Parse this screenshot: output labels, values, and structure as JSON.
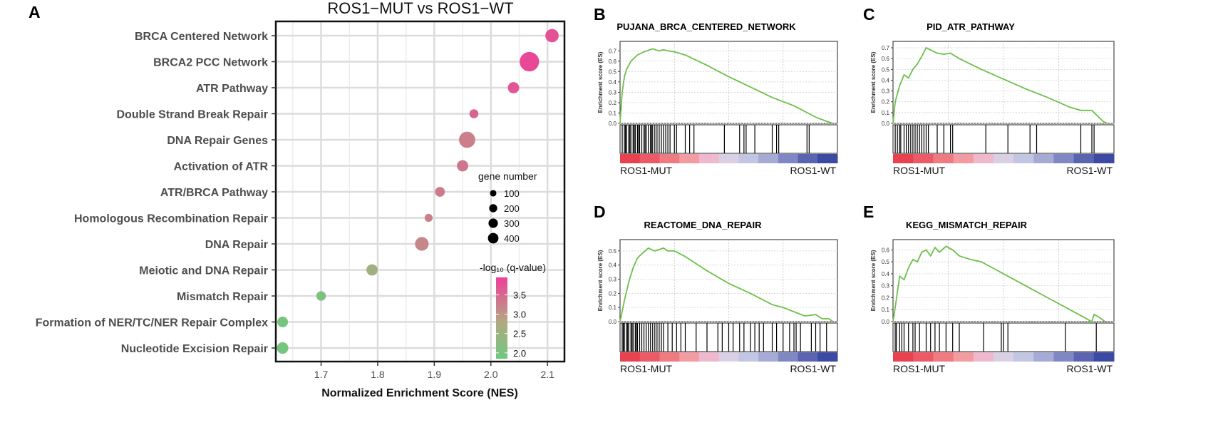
{
  "panels": {
    "a": "A",
    "b": "B",
    "c": "C",
    "d": "D",
    "e": "E"
  },
  "chart_data": [
    {
      "type": "scatter",
      "id": "dotplot",
      "title": "ROS1−MUT vs ROS1−WT",
      "xlabel": "Normalized Enrichment Score (NES)",
      "ylabel": "",
      "xlim": [
        1.62,
        2.13
      ],
      "xticks": [
        1.7,
        1.8,
        1.9,
        2.0,
        2.1
      ],
      "xtick_labels": [
        "1.7",
        "1.8",
        "1.9",
        "2.0",
        "2.1"
      ],
      "grid": true,
      "categories": [
        "BRCA Centered Network",
        "BRCA2 PCC Network",
        "ATR Pathway",
        "Double Strand Break Repair",
        "DNA Repair Genes",
        "Activation of ATR",
        "ATR/BRCA Pathway",
        "Homologous Recombination Repair",
        "DNA Repair",
        "Meiotic and DNA Repair",
        "Mismatch Repair",
        "Formation of NER/TC/NER Repair Complex",
        "Nucleotide Excision Repair"
      ],
      "nes": [
        2.108,
        2.068,
        2.04,
        1.97,
        1.958,
        1.95,
        1.91,
        1.89,
        1.878,
        1.79,
        1.7,
        1.632,
        1.632
      ],
      "genes": [
        150,
        420,
        90,
        40,
        260,
        90,
        55,
        25,
        160,
        90,
        50,
        75,
        95
      ],
      "neglog10_q": [
        3.75,
        3.85,
        3.7,
        3.55,
        3.25,
        3.35,
        3.3,
        3.25,
        3.15,
        2.55,
        2.05,
        1.95,
        1.95
      ],
      "size_legend": {
        "title": "gene number",
        "entries": [
          {
            "label": "100",
            "value": 100
          },
          {
            "label": "200",
            "value": 200
          },
          {
            "label": "300",
            "value": 300
          },
          {
            "label": "400",
            "value": 400
          }
        ]
      },
      "color_legend": {
        "title": "-log₁₀ (q-value)",
        "range": [
          1.85,
          3.95
        ],
        "ticks": [
          {
            "label": "3.5",
            "value": 3.5
          },
          {
            "label": "3.0",
            "value": 3.0
          },
          {
            "label": "2.5",
            "value": 2.5
          },
          {
            "label": "2.0",
            "value": 2.0
          }
        ],
        "low_color": "#6fc87f",
        "high_color": "#ee3f99"
      }
    },
    {
      "type": "line",
      "id": "gsea_b",
      "title": "PUJANA_BRCA_CENTERED_NETWORK",
      "ylabel": "Enrichment score (ES)",
      "ylim": [
        0,
        0.75
      ],
      "yticks": [
        "0.0",
        "0.1",
        "0.2",
        "0.3",
        "0.4",
        "0.5",
        "0.6",
        "0.7"
      ],
      "x": [
        0,
        0.01,
        0.02,
        0.03,
        0.05,
        0.08,
        0.11,
        0.15,
        0.18,
        0.2,
        0.22,
        0.25,
        0.3,
        0.4,
        0.5,
        0.6,
        0.7,
        0.8,
        0.9,
        0.95,
        0.98
      ],
      "es": [
        0,
        0.3,
        0.45,
        0.52,
        0.6,
        0.66,
        0.69,
        0.72,
        0.7,
        0.71,
        0.7,
        0.69,
        0.66,
        0.56,
        0.45,
        0.35,
        0.25,
        0.17,
        0.06,
        0.02,
        0.0
      ],
      "hits": [
        0.01,
        0.02,
        0.025,
        0.03,
        0.04,
        0.045,
        0.05,
        0.06,
        0.065,
        0.07,
        0.08,
        0.085,
        0.09,
        0.1,
        0.11,
        0.115,
        0.12,
        0.13,
        0.14,
        0.145,
        0.15,
        0.16,
        0.17,
        0.18,
        0.19,
        0.2,
        0.21,
        0.22,
        0.23,
        0.25,
        0.26,
        0.3,
        0.32,
        0.34,
        0.48,
        0.55,
        0.57,
        0.58,
        0.62,
        0.7,
        0.72,
        0.73,
        0.86,
        0.87
      ],
      "group_left": "ROS1-MUT",
      "group_right": "ROS1-WT"
    },
    {
      "type": "line",
      "id": "gsea_c",
      "title": "PID_ATR_PATHWAY",
      "ylabel": "Enrichment score (ES)",
      "ylim": [
        0,
        0.72
      ],
      "yticks": [
        "0.0",
        "0.1",
        "0.2",
        "0.3",
        "0.4",
        "0.5",
        "0.6",
        "0.7"
      ],
      "x": [
        0,
        0.01,
        0.03,
        0.05,
        0.07,
        0.09,
        0.11,
        0.13,
        0.15,
        0.17,
        0.2,
        0.23,
        0.26,
        0.3,
        0.4,
        0.5,
        0.6,
        0.7,
        0.8,
        0.85,
        0.9,
        0.95,
        0.97
      ],
      "es": [
        0,
        0.2,
        0.35,
        0.45,
        0.42,
        0.5,
        0.55,
        0.62,
        0.7,
        0.68,
        0.65,
        0.64,
        0.65,
        0.6,
        0.5,
        0.41,
        0.32,
        0.24,
        0.15,
        0.12,
        0.12,
        0.02,
        0.0
      ],
      "hits": [
        0.01,
        0.02,
        0.03,
        0.035,
        0.05,
        0.06,
        0.07,
        0.08,
        0.09,
        0.1,
        0.11,
        0.12,
        0.13,
        0.14,
        0.15,
        0.16,
        0.2,
        0.23,
        0.26,
        0.27,
        0.42,
        0.52,
        0.62,
        0.65,
        0.85,
        0.9,
        0.91
      ],
      "group_left": "ROS1-MUT",
      "group_right": "ROS1-WT"
    },
    {
      "type": "line",
      "id": "gsea_d",
      "title": "REACTOME_DNA_REPAIR",
      "ylabel": "Enrichment score (ES)",
      "ylim": [
        0,
        0.55
      ],
      "yticks": [
        "0.0",
        "0.1",
        "0.2",
        "0.3",
        "0.4",
        "0.5"
      ],
      "x": [
        0,
        0.02,
        0.04,
        0.06,
        0.08,
        0.1,
        0.13,
        0.16,
        0.2,
        0.22,
        0.25,
        0.3,
        0.4,
        0.5,
        0.6,
        0.7,
        0.75,
        0.8,
        0.85,
        0.9,
        0.93,
        0.96,
        0.98
      ],
      "es": [
        0,
        0.15,
        0.28,
        0.38,
        0.45,
        0.48,
        0.52,
        0.5,
        0.52,
        0.5,
        0.5,
        0.46,
        0.36,
        0.27,
        0.2,
        0.12,
        0.1,
        0.07,
        0.04,
        0.05,
        0.02,
        0.02,
        0.0
      ],
      "hits": [
        0.01,
        0.015,
        0.02,
        0.03,
        0.035,
        0.04,
        0.05,
        0.055,
        0.06,
        0.07,
        0.075,
        0.08,
        0.09,
        0.1,
        0.11,
        0.12,
        0.13,
        0.14,
        0.15,
        0.16,
        0.17,
        0.18,
        0.19,
        0.2,
        0.22,
        0.24,
        0.26,
        0.28,
        0.3,
        0.35,
        0.4,
        0.45,
        0.47,
        0.5,
        0.52,
        0.55,
        0.57,
        0.6,
        0.62,
        0.64,
        0.66,
        0.7,
        0.72,
        0.75,
        0.78,
        0.8,
        0.81,
        0.83,
        0.88,
        0.9,
        0.92,
        0.95
      ],
      "group_left": "ROS1-MUT",
      "group_right": "ROS1-WT"
    },
    {
      "type": "line",
      "id": "gsea_e",
      "title": "KEGG_MISMATCH_REPAIR",
      "ylabel": "Enrichment score (ES)",
      "ylim": [
        0,
        0.65
      ],
      "yticks": [
        "0.0",
        "0.1",
        "0.2",
        "0.3",
        "0.4",
        "0.5",
        "0.6"
      ],
      "x": [
        0,
        0.01,
        0.03,
        0.05,
        0.07,
        0.09,
        0.11,
        0.13,
        0.15,
        0.17,
        0.19,
        0.21,
        0.24,
        0.27,
        0.3,
        0.35,
        0.4,
        0.45,
        0.5,
        0.6,
        0.7,
        0.8,
        0.9,
        0.91,
        0.93,
        0.96
      ],
      "es": [
        0,
        0.12,
        0.38,
        0.35,
        0.45,
        0.52,
        0.5,
        0.58,
        0.6,
        0.55,
        0.62,
        0.58,
        0.63,
        0.6,
        0.55,
        0.52,
        0.5,
        0.45,
        0.4,
        0.3,
        0.2,
        0.1,
        0.0,
        0.06,
        0.04,
        0.0
      ],
      "hits": [
        0.01,
        0.015,
        0.03,
        0.04,
        0.05,
        0.07,
        0.09,
        0.1,
        0.12,
        0.15,
        0.17,
        0.19,
        0.21,
        0.24,
        0.27,
        0.3,
        0.41,
        0.49,
        0.5,
        0.52,
        0.78,
        0.92
      ],
      "group_left": "ROS1-MUT",
      "group_right": "ROS1-WT"
    }
  ]
}
